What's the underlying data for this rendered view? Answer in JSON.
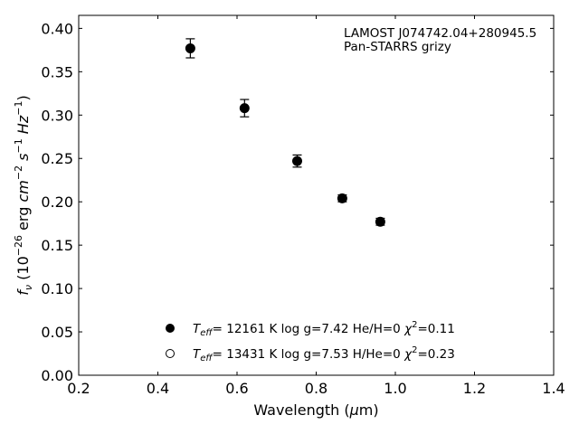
{
  "chart_data": {
    "type": "scatter",
    "xlabel": "Wavelength (μm)",
    "ylabel": "f_ν (10^-26 erg cm^-2 s^-1 Hz^-1)",
    "xlim": [
      0.2,
      1.4
    ],
    "ylim": [
      0.0,
      0.415
    ],
    "x_ticks": [
      "0.2",
      "0.4",
      "0.6",
      "0.8",
      "1.0",
      "1.2",
      "1.4"
    ],
    "y_ticks": [
      "0.00",
      "0.05",
      "0.10",
      "0.15",
      "0.20",
      "0.25",
      "0.30",
      "0.35",
      "0.40"
    ],
    "grid": false,
    "annotation": [
      "LAMOST J074742.04+280945.5",
      "Pan-STARRS grizy"
    ],
    "series": [
      {
        "marker": "filled-circle",
        "x": [
          0.482,
          0.619,
          0.752,
          0.866,
          0.962
        ],
        "y": [
          0.377,
          0.308,
          0.247,
          0.204,
          0.177
        ],
        "yerr": [
          0.011,
          0.01,
          0.007,
          0.004,
          0.004
        ]
      },
      {
        "marker": "open-circle",
        "x": [
          0.482,
          0.619,
          0.752,
          0.866,
          0.962
        ],
        "y": [
          0.377,
          0.308,
          0.247,
          0.204,
          0.177
        ]
      }
    ],
    "legend": [
      {
        "marker": "filled-circle",
        "teff": "T",
        "teff_sub": "eff",
        "text": "= 12161 K  log g=7.42  He/H=0  ",
        "chi": "χ",
        "chi_sup": "2",
        "chi_val": "=0.11"
      },
      {
        "marker": "open-circle",
        "teff": "T",
        "teff_sub": "eff",
        "text": "= 13431 K  log g=7.53  H/He=0  ",
        "chi": "χ",
        "chi_sup": "2",
        "chi_val": "=0.23"
      }
    ],
    "legend_position": "bottom-left"
  }
}
